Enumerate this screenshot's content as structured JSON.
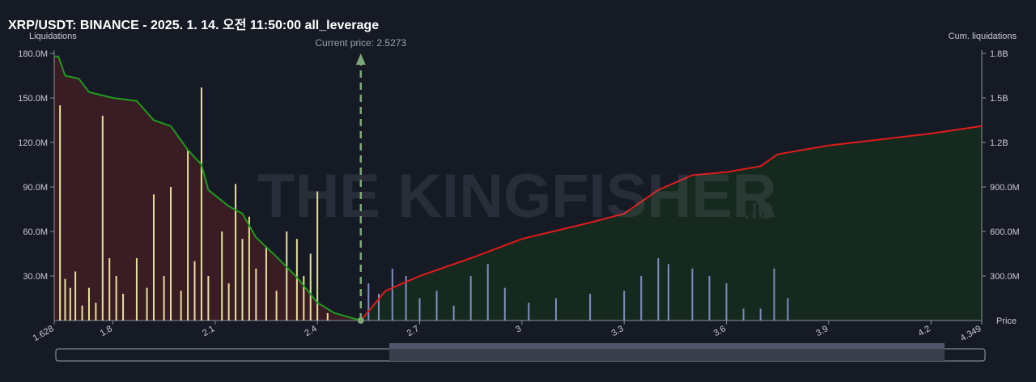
{
  "chart_data": {
    "type": "bar",
    "title": "XRP/USDT: BINANCE - 2025. 1. 14. 오전 11:50:00 all_leverage",
    "y_label": "Liquidations",
    "y2_label": "Cum. liquidations",
    "x_label": "Price",
    "annotation": {
      "value": 2.5273,
      "label": "Current price: 2.5273"
    },
    "watermark": "THE KINGFISHER",
    "watermark_suffix": ".io",
    "xlim": [
      1.628,
      4.349
    ],
    "xticks": [
      1.628,
      1.8,
      2.1,
      2.4,
      2.7,
      3,
      3.3,
      3.6,
      3.9,
      4.2,
      4.349
    ],
    "ylim": [
      0,
      180000000
    ],
    "yticks": [
      {
        "value": 30000000,
        "label": "30.0M"
      },
      {
        "value": 60000000,
        "label": "60.0M"
      },
      {
        "value": 90000000,
        "label": "90.0M"
      },
      {
        "value": 120000000,
        "label": "120.0M"
      },
      {
        "value": 150000000,
        "label": "150.0M"
      },
      {
        "value": 180000000,
        "label": "180.0M"
      }
    ],
    "y2lim": [
      0,
      1800000000
    ],
    "y2ticks": [
      {
        "value": 300000000,
        "label": "300.0M"
      },
      {
        "value": 600000000,
        "label": "600.0M"
      },
      {
        "value": 900000000,
        "label": "900.0M"
      },
      {
        "value": 1200000000,
        "label": "1.2B"
      },
      {
        "value": 1500000000,
        "label": "1.5B"
      },
      {
        "value": 1800000000,
        "label": "1.8B"
      }
    ],
    "series": [
      {
        "type": "bar",
        "color": "#e6e29a",
        "x": [
          1.645,
          1.66,
          1.675,
          1.69,
          1.71,
          1.73,
          1.75,
          1.77,
          1.79,
          1.81,
          1.83,
          1.87,
          1.9,
          1.92,
          1.95,
          1.97,
          2.0,
          2.02,
          2.04,
          2.06,
          2.08,
          2.12,
          2.14,
          2.16,
          2.18,
          2.2,
          2.22,
          2.25,
          2.28,
          2.31,
          2.34,
          2.36,
          2.38,
          2.4,
          2.43
        ],
        "values": [
          145000000,
          28000000,
          22000000,
          33000000,
          10000000,
          22000000,
          12000000,
          138000000,
          42000000,
          30000000,
          18000000,
          42000000,
          22000000,
          85000000,
          30000000,
          90000000,
          20000000,
          115000000,
          40000000,
          157000000,
          30000000,
          60000000,
          25000000,
          92000000,
          55000000,
          70000000,
          35000000,
          50000000,
          20000000,
          60000000,
          55000000,
          30000000,
          45000000,
          87000000,
          5000000
        ]
      },
      {
        "type": "bar",
        "color": "#7f8fbf",
        "x": [
          2.55,
          2.58,
          2.62,
          2.66,
          2.7,
          2.75,
          2.8,
          2.85,
          2.9,
          2.95,
          3.02,
          3.1,
          3.2,
          3.3,
          3.35,
          3.4,
          3.43,
          3.5,
          3.55,
          3.6,
          3.65,
          3.7,
          3.74,
          3.78
        ],
        "values": [
          25000000,
          18000000,
          35000000,
          30000000,
          15000000,
          20000000,
          10000000,
          30000000,
          38000000,
          22000000,
          12000000,
          15000000,
          18000000,
          20000000,
          30000000,
          42000000,
          38000000,
          35000000,
          30000000,
          25000000,
          8000000,
          8000000,
          35000000,
          15000000
        ]
      },
      {
        "type": "line",
        "axis": "y2",
        "color": "#1f9a1f",
        "fill": "#3a1c24",
        "x": [
          1.628,
          1.64,
          1.66,
          1.7,
          1.73,
          1.8,
          1.87,
          1.92,
          1.97,
          2.02,
          2.06,
          2.08,
          2.14,
          2.18,
          2.22,
          2.28,
          2.34,
          2.4,
          2.45,
          2.5273
        ],
        "values": [
          1780000000,
          1780000000,
          1650000000,
          1630000000,
          1540000000,
          1500000000,
          1480000000,
          1350000000,
          1310000000,
          1150000000,
          1050000000,
          880000000,
          770000000,
          720000000,
          560000000,
          430000000,
          290000000,
          120000000,
          50000000,
          0
        ]
      },
      {
        "type": "line",
        "axis": "y2",
        "color": "#e01b1b",
        "fill": "#16291f",
        "x": [
          2.5273,
          2.6,
          2.7,
          2.85,
          3.0,
          3.2,
          3.3,
          3.4,
          3.5,
          3.6,
          3.7,
          3.75,
          3.9,
          4.2,
          4.349
        ],
        "values": [
          0,
          200000000,
          300000000,
          420000000,
          550000000,
          660000000,
          720000000,
          880000000,
          980000000,
          1000000000,
          1040000000,
          1120000000,
          1180000000,
          1260000000,
          1310000000
        ]
      }
    ]
  }
}
